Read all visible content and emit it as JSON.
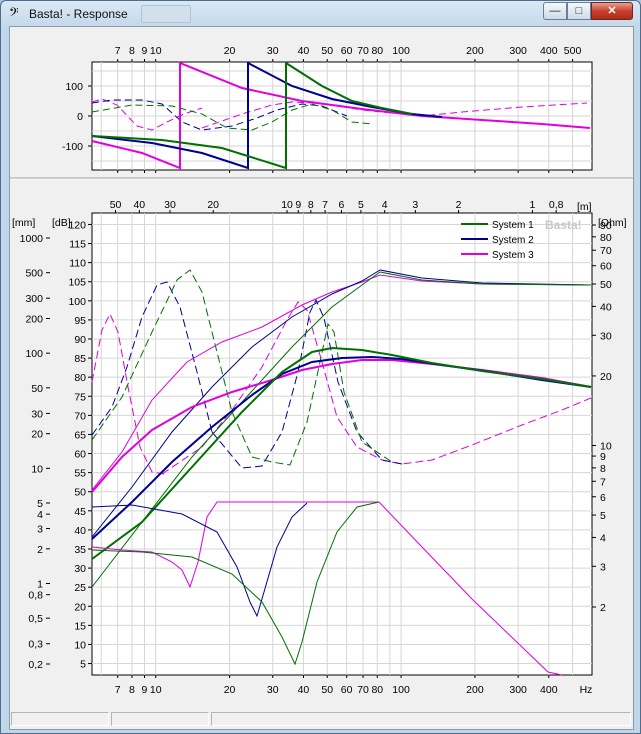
{
  "window": {
    "title": "Basta! - Response",
    "icon": "bass-clef-icon",
    "controls": {
      "minimize": "—",
      "maximize": "□",
      "close": "✕"
    }
  },
  "top_plot": {
    "x_ticks": [
      "7",
      "8",
      "9",
      "10",
      "20",
      "30",
      "40",
      "50",
      "60",
      "70",
      "80",
      "100",
      "200",
      "300",
      "400",
      "500"
    ],
    "x_tick_values": [
      7,
      8,
      9,
      10,
      20,
      30,
      40,
      50,
      60,
      70,
      80,
      100,
      200,
      300,
      400,
      500
    ],
    "y_ticks": [
      "100",
      "0",
      "-100"
    ],
    "y_tick_values": [
      100,
      0,
      -100
    ],
    "x_range": [
      5.5,
      600
    ],
    "y_range": [
      -180,
      180
    ]
  },
  "main_plot": {
    "x_ticks": [
      "7",
      "8",
      "9",
      "10",
      "20",
      "30",
      "40",
      "50",
      "60",
      "70",
      "80",
      "100",
      "200",
      "300",
      "400",
      "Hz"
    ],
    "x_tick_values": [
      7,
      8,
      9,
      10,
      20,
      30,
      40,
      50,
      60,
      70,
      80,
      100,
      200,
      300,
      400
    ],
    "m_unit": "[m]",
    "m_ticks": [
      "50",
      "40",
      "30",
      "20",
      "10",
      "9",
      "8",
      "7",
      "6",
      "5",
      "4",
      "3",
      "2",
      "1",
      "0,8"
    ],
    "m_tick_values": [
      50,
      40,
      30,
      20,
      10,
      9,
      8,
      7,
      6,
      5,
      4,
      3,
      2,
      1,
      0.8
    ],
    "mm_unit": "[mm]",
    "mm_ticks": [
      "1000",
      "500",
      "300",
      "200",
      "100",
      "50",
      "30",
      "20",
      "10",
      "5",
      "4",
      "3",
      "2",
      "1",
      "0,8",
      "0,5",
      "0,3",
      "0,2"
    ],
    "mm_tick_values": [
      1000,
      500,
      300,
      200,
      100,
      50,
      30,
      20,
      10,
      5,
      4,
      3,
      2,
      1,
      0.8,
      0.5,
      0.3,
      0.2
    ],
    "db_unit": "[dB]",
    "db_ticks": [
      "120",
      "115",
      "110",
      "105",
      "100",
      "95",
      "90",
      "85",
      "80",
      "75",
      "70",
      "65",
      "60",
      "55",
      "50",
      "45",
      "40",
      "35",
      "30",
      "25",
      "20",
      "15",
      "10",
      "5"
    ],
    "db_tick_values": [
      120,
      115,
      110,
      105,
      100,
      95,
      90,
      85,
      80,
      75,
      70,
      65,
      60,
      55,
      50,
      45,
      40,
      35,
      30,
      25,
      20,
      15,
      10,
      5
    ],
    "ohm_unit": "[Ohm]",
    "ohm_ticks": [
      "90",
      "80",
      "70",
      "60",
      "50",
      "40",
      "30",
      "20",
      "10",
      "9",
      "8",
      "7",
      "6",
      "5",
      "4",
      "3",
      "2"
    ],
    "ohm_tick_values": [
      90,
      80,
      70,
      60,
      50,
      40,
      30,
      20,
      10,
      9,
      8,
      7,
      6,
      5,
      4,
      3,
      2
    ],
    "watermark": "Basta!",
    "db_range": [
      2,
      123
    ],
    "legend": [
      {
        "name": "System 1",
        "color": "#007000"
      },
      {
        "name": "System 2",
        "color": "#000090"
      },
      {
        "name": "System 3",
        "color": "#e000e0"
      }
    ]
  },
  "status": {
    "panels": [
      "",
      "",
      ""
    ]
  }
}
